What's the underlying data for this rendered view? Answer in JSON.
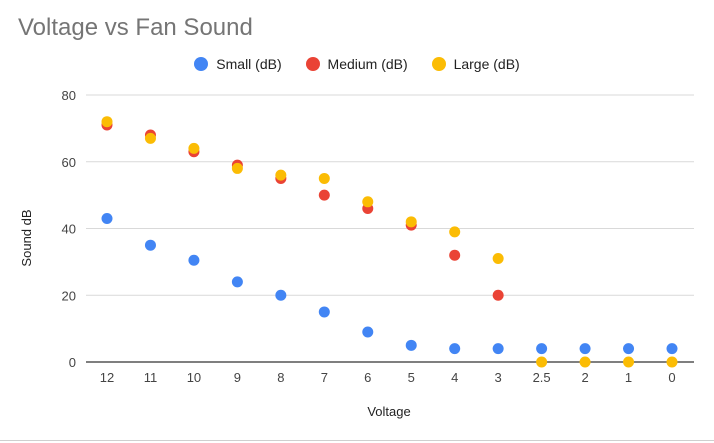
{
  "chart_data": {
    "type": "scatter",
    "title": "Voltage vs Fan Sound",
    "xlabel": "Voltage",
    "ylabel": "Sound dB",
    "categories": [
      "12",
      "11",
      "10",
      "9",
      "8",
      "7",
      "6",
      "5",
      "4",
      "3",
      "2.5",
      "2",
      "1",
      "0"
    ],
    "ylim": [
      0,
      80
    ],
    "yticks": [
      0,
      20,
      40,
      60,
      80
    ],
    "grid": true,
    "legend_position": "top",
    "series": [
      {
        "name": "Small (dB)",
        "color": "#4285f4",
        "values": [
          43,
          35,
          30.5,
          24,
          20,
          15,
          9,
          5,
          4,
          4,
          4,
          4,
          4,
          4
        ]
      },
      {
        "name": "Medium (dB)",
        "color": "#ea4335",
        "values": [
          71,
          68,
          63,
          59,
          55,
          50,
          46,
          41,
          32,
          20,
          null,
          null,
          null,
          null
        ]
      },
      {
        "name": "Large (dB)",
        "color": "#fbbc04",
        "values": [
          72,
          67,
          64,
          58,
          56,
          55,
          48,
          42,
          39,
          31,
          0,
          0,
          0,
          0
        ]
      }
    ]
  }
}
